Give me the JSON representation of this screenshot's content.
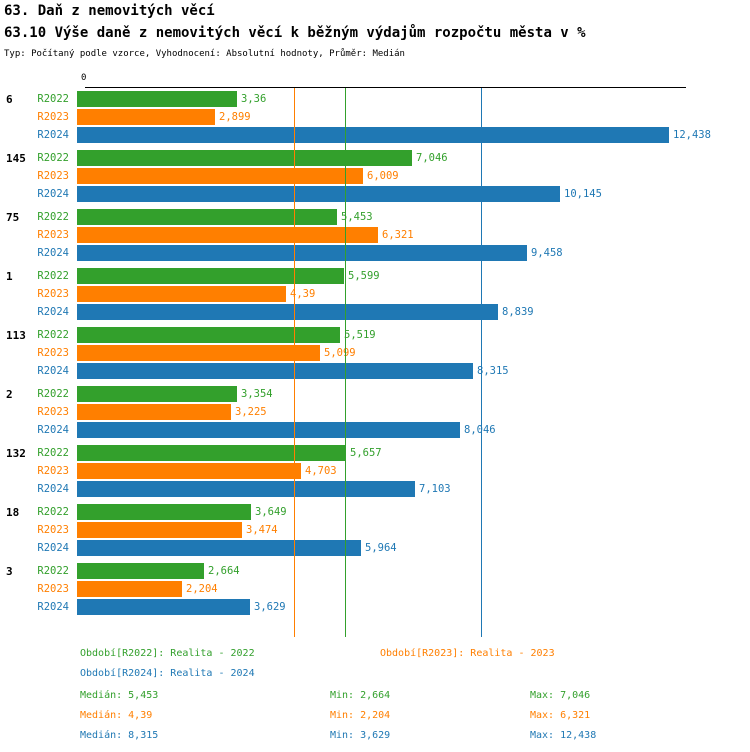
{
  "header": {
    "title": "63. Daň z nemovitých věcí",
    "subtitle": "63.10 Výše daně z nemovitých věcí k běžným výdajům rozpočtu města v %",
    "meta": "Typ: Počítaný podle vzorce, Vyhodnocení: Absolutní hodnoty, Průměr: Medián"
  },
  "chart_data": {
    "type": "bar",
    "orientation": "horizontal",
    "title": "63.10 Výše daně z nemovitých věcí k běžným výdajům rozpočtu města v %",
    "xlabel": "",
    "ylabel": "",
    "xlim": [
      0,
      12.6
    ],
    "x_axis": {
      "zero_label": "0"
    },
    "grid": false,
    "legend_position": "bottom",
    "categories": [
      "6",
      "145",
      "75",
      "1",
      "113",
      "2",
      "132",
      "18",
      "3"
    ],
    "series": [
      {
        "name": "R2022",
        "color": "#33a02c",
        "values": [
          3.36,
          7.046,
          5.453,
          5.599,
          5.519,
          3.354,
          5.657,
          3.649,
          2.664
        ],
        "value_labels": [
          "3,36",
          "7,046",
          "5,453",
          "5,599",
          "5,519",
          "3,354",
          "5,657",
          "3,649",
          "2,664"
        ]
      },
      {
        "name": "R2023",
        "color": "#ff7f00",
        "values": [
          2.899,
          6.009,
          6.321,
          4.39,
          5.099,
          3.225,
          4.703,
          3.474,
          2.204
        ],
        "value_labels": [
          "2,899",
          "6,009",
          "6,321",
          "4,39",
          "5,099",
          "3,225",
          "4,703",
          "3,474",
          "2,204"
        ]
      },
      {
        "name": "R2024",
        "color": "#1f78b4",
        "values": [
          12.438,
          10.145,
          9.458,
          8.839,
          8.315,
          8.046,
          7.103,
          5.964,
          3.629
        ],
        "value_labels": [
          "12,438",
          "10,145",
          "9,458",
          "8,839",
          "8,315",
          "8,046",
          "7,103",
          "5,964",
          "3,629"
        ]
      }
    ],
    "median_lines": [
      {
        "series": "R2022",
        "value": 5.453,
        "color": "#33a02c"
      },
      {
        "series": "R2023",
        "value": 4.39,
        "color": "#ff7f00"
      },
      {
        "series": "R2024",
        "value": 8.315,
        "color": "#1f78b4"
      }
    ]
  },
  "legend": {
    "items": [
      {
        "label": "Období[R2022]: Realita - 2022",
        "color": "#33a02c"
      },
      {
        "label": "Období[R2023]: Realita - 2023",
        "color": "#ff7f00"
      },
      {
        "label": "Období[R2024]: Realita - 2024",
        "color": "#1f78b4"
      }
    ],
    "stats": [
      {
        "median": "Medián: 5,453",
        "min": "Min: 2,664",
        "max": "Max: 7,046",
        "color": "#33a02c"
      },
      {
        "median": "Medián: 4,39",
        "min": "Min: 2,204",
        "max": "Max: 6,321",
        "color": "#ff7f00"
      },
      {
        "median": "Medián: 8,315",
        "min": "Min: 3,629",
        "max": "Max: 12,438",
        "color": "#1f78b4"
      }
    ]
  }
}
